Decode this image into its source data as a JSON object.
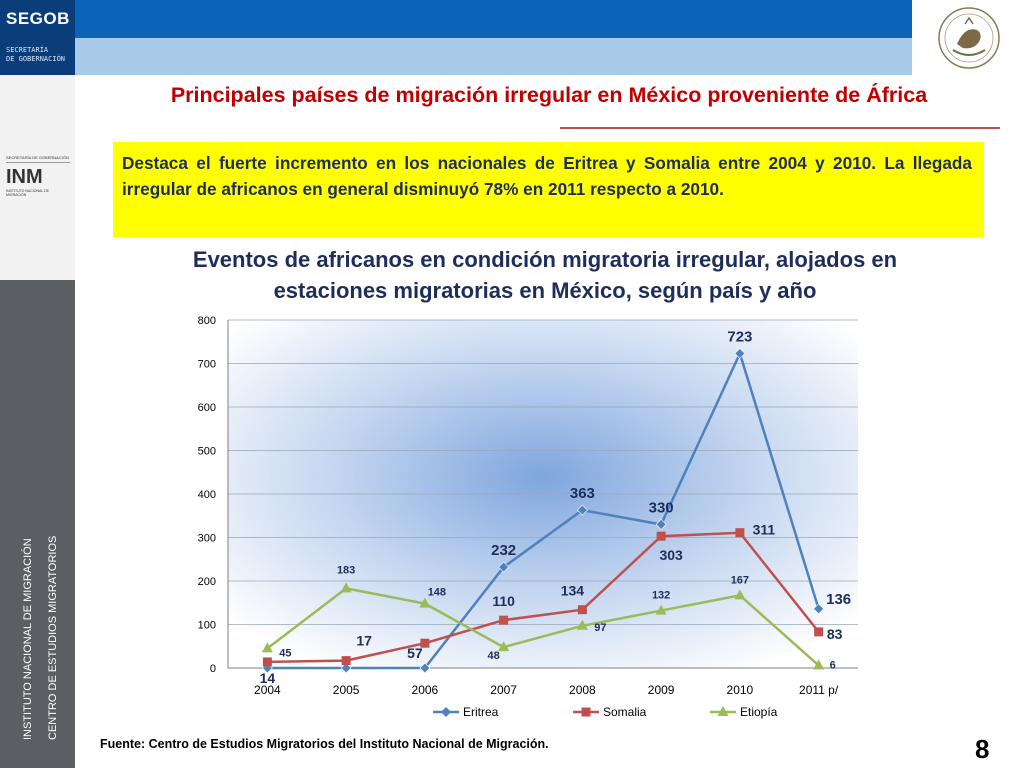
{
  "header": {
    "logo_text": "SEGOB",
    "logo_subtext_line1": "SECRETARÍA",
    "logo_subtext_line2": "DE GOBERNACIÓN"
  },
  "sidebar": {
    "inm_top": "SECRETARÍA DE GOBERNACIÓN",
    "inm_mark": "INM",
    "inm_bottom": "INSTITUTO NACIONAL DE MIGRACIÓN",
    "vertical_line1": "INSTITUTO NACIONAL DE MIGRACIÓN",
    "vertical_line2": "CENTRO DE ESTUDIOS MIGRATORIOS"
  },
  "slide": {
    "title": "Principales países de migración irregular en México proveniente de África",
    "highlight": "Destaca el fuerte incremento en los nacionales de Eritrea y Somalia entre 2004 y 2010. La llegada irregular de africanos en general disminuyó 78% en 2011 respecto a 2010.",
    "chart_title_line1": "Eventos de africanos en condición migratoria irregular, alojados en",
    "chart_title_line2": "estaciones migratorias en México, según país y año",
    "source": "Fuente: Centro de Estudios Migratorios del Instituto Nacional de Migración.",
    "page_number": "8"
  },
  "chart_data": {
    "type": "line",
    "title": "",
    "xlabel": "",
    "ylabel": "",
    "categories": [
      "2004",
      "2005",
      "2006",
      "2007",
      "2008",
      "2009",
      "2010",
      "2011 p/"
    ],
    "ylim": [
      0,
      800
    ],
    "yticks": [
      0,
      100,
      200,
      300,
      400,
      500,
      600,
      700,
      800
    ],
    "grid": true,
    "legend": "bottom",
    "series": [
      {
        "name": "Eritrea",
        "color": "#4f81bd",
        "marker": "diamond",
        "values": [
          0,
          0,
          0,
          232,
          363,
          330,
          723,
          136
        ],
        "labels": [
          "",
          "",
          "",
          "232",
          "363",
          "330",
          "723",
          "136"
        ]
      },
      {
        "name": "Somalia",
        "color": "#c0504d",
        "marker": "square",
        "values": [
          14,
          17,
          57,
          110,
          134,
          303,
          311,
          83
        ],
        "labels": [
          "14",
          "17",
          "57",
          "110",
          "134",
          "303",
          "311",
          "83"
        ]
      },
      {
        "name": "Etiopía",
        "color": "#9bbb59",
        "marker": "triangle",
        "values": [
          45,
          183,
          148,
          48,
          97,
          132,
          167,
          6
        ],
        "labels": [
          "45",
          "183",
          "148",
          "48",
          "97",
          "132",
          "167",
          "6"
        ]
      }
    ]
  }
}
